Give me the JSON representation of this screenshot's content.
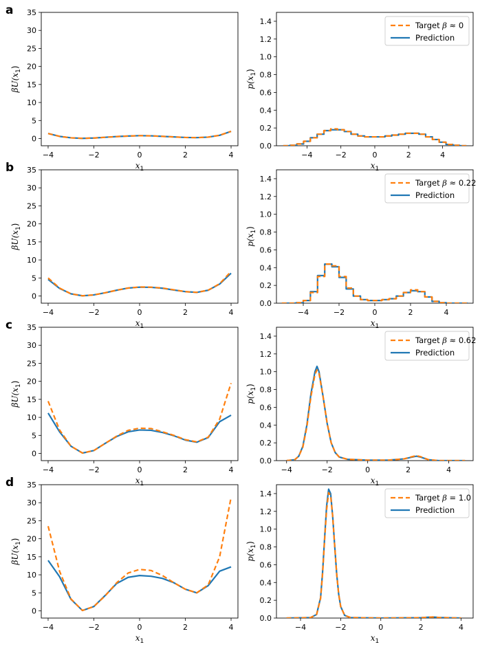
{
  "colors": {
    "target": "#ff7f0e",
    "prediction": "#1f77b4"
  },
  "chart_data": [
    {
      "id": "a-energy",
      "panel_label": "a",
      "type": "line",
      "xlabel_main": "x",
      "xlabel_sub": "1",
      "ylabel": "βU(x",
      "xlim": [
        -4.3,
        4.3
      ],
      "ylim": [
        -2,
        35
      ],
      "xticks": [
        "−4",
        "−2",
        "0",
        "2",
        "4"
      ],
      "xtick_values": [
        -4,
        -2,
        0,
        2,
        4
      ],
      "yticks": [
        "0",
        "5",
        "10",
        "15",
        "20",
        "25",
        "30",
        "35"
      ],
      "ytick_values": [
        0,
        5,
        10,
        15,
        20,
        25,
        30,
        35
      ],
      "x": [
        -4,
        -3.5,
        -3,
        -2.5,
        -2,
        -1.5,
        -1,
        -0.5,
        0,
        0.5,
        1,
        1.5,
        2,
        2.5,
        3,
        3.5,
        4
      ],
      "series": [
        {
          "role": "target",
          "values": [
            1.4,
            0.6,
            0.2,
            0.05,
            0.15,
            0.35,
            0.55,
            0.7,
            0.8,
            0.75,
            0.6,
            0.45,
            0.3,
            0.25,
            0.4,
            0.9,
            2.0
          ]
        },
        {
          "role": "prediction",
          "values": [
            1.4,
            0.6,
            0.2,
            0.05,
            0.15,
            0.35,
            0.55,
            0.7,
            0.8,
            0.75,
            0.6,
            0.45,
            0.3,
            0.25,
            0.4,
            0.9,
            2.0
          ]
        }
      ]
    },
    {
      "id": "a-density",
      "type": "step",
      "xlabel_main": "x",
      "xlabel_sub": "1",
      "ylabel": "p(x",
      "xlim": [
        -5.8,
        5.8
      ],
      "ylim": [
        0,
        1.5
      ],
      "xticks": [
        "−4",
        "−2",
        "0",
        "2",
        "4"
      ],
      "xtick_values": [
        -4,
        -2,
        0,
        2,
        4
      ],
      "yticks": [
        "0.0",
        "0.2",
        "0.4",
        "0.6",
        "0.8",
        "1.0",
        "1.2",
        "1.4"
      ],
      "ytick_values": [
        0,
        0.2,
        0.4,
        0.6,
        0.8,
        1.0,
        1.2,
        1.4
      ],
      "legend": {
        "target_prefix": "Target ",
        "beta_symbol": "β",
        "target_suffix": " ≈ 0",
        "prediction": "Prediction"
      },
      "x": [
        -5.2,
        -4.8,
        -4.4,
        -4.0,
        -3.6,
        -3.2,
        -2.8,
        -2.4,
        -2.0,
        -1.6,
        -1.2,
        -0.8,
        -0.4,
        0.0,
        0.4,
        0.8,
        1.2,
        1.6,
        2.0,
        2.4,
        2.8,
        3.2,
        3.6,
        4.0,
        4.4,
        4.8,
        5.2
      ],
      "series": [
        {
          "role": "target",
          "values": [
            0.0,
            0.005,
            0.02,
            0.05,
            0.09,
            0.13,
            0.17,
            0.19,
            0.18,
            0.16,
            0.13,
            0.11,
            0.1,
            0.1,
            0.1,
            0.11,
            0.12,
            0.13,
            0.14,
            0.14,
            0.13,
            0.1,
            0.07,
            0.04,
            0.015,
            0.005,
            0.0
          ]
        },
        {
          "role": "prediction",
          "values": [
            0.0,
            0.005,
            0.02,
            0.05,
            0.09,
            0.13,
            0.17,
            0.18,
            0.18,
            0.16,
            0.13,
            0.11,
            0.1,
            0.1,
            0.1,
            0.11,
            0.12,
            0.13,
            0.14,
            0.14,
            0.13,
            0.1,
            0.07,
            0.04,
            0.015,
            0.005,
            0.0
          ]
        }
      ]
    },
    {
      "id": "b-energy",
      "panel_label": "b",
      "type": "line",
      "xlabel_main": "x",
      "xlabel_sub": "1",
      "ylabel": "βU(x",
      "xlim": [
        -4.3,
        4.3
      ],
      "ylim": [
        -2,
        35
      ],
      "xticks": [
        "−4",
        "−2",
        "0",
        "2",
        "4"
      ],
      "xtick_values": [
        -4,
        -2,
        0,
        2,
        4
      ],
      "yticks": [
        "0",
        "5",
        "10",
        "15",
        "20",
        "25",
        "30",
        "35"
      ],
      "ytick_values": [
        0,
        5,
        10,
        15,
        20,
        25,
        30,
        35
      ],
      "x": [
        -4,
        -3.5,
        -3,
        -2.5,
        -2,
        -1.5,
        -1,
        -0.5,
        0,
        0.5,
        1,
        1.5,
        2,
        2.5,
        3,
        3.5,
        4
      ],
      "series": [
        {
          "role": "target",
          "values": [
            5.0,
            2.2,
            0.6,
            0.05,
            0.3,
            0.9,
            1.6,
            2.2,
            2.5,
            2.45,
            2.2,
            1.7,
            1.2,
            1.0,
            1.6,
            3.4,
            6.8
          ]
        },
        {
          "role": "prediction",
          "values": [
            4.6,
            2.1,
            0.6,
            0.05,
            0.3,
            0.9,
            1.6,
            2.2,
            2.45,
            2.4,
            2.15,
            1.65,
            1.2,
            1.0,
            1.6,
            3.3,
            6.3
          ]
        }
      ]
    },
    {
      "id": "b-density",
      "type": "step",
      "xlabel_main": "x",
      "xlabel_sub": "1",
      "ylabel": "p(x",
      "xlim": [
        -5.5,
        5.5
      ],
      "ylim": [
        0,
        1.5
      ],
      "xticks": [
        "−4",
        "−2",
        "0",
        "2",
        "4"
      ],
      "xtick_values": [
        -4,
        -2,
        0,
        2,
        4
      ],
      "yticks": [
        "0.0",
        "0.2",
        "0.4",
        "0.6",
        "0.8",
        "1.0",
        "1.2",
        "1.4"
      ],
      "ytick_values": [
        0,
        0.2,
        0.4,
        0.6,
        0.8,
        1.0,
        1.2,
        1.4
      ],
      "legend": {
        "target_prefix": "Target ",
        "beta_symbol": "β",
        "target_suffix": " ≈ 0.22",
        "prediction": "Prediction"
      },
      "x": [
        -5.0,
        -4.6,
        -4.2,
        -3.8,
        -3.4,
        -3.0,
        -2.6,
        -2.2,
        -1.8,
        -1.4,
        -1.0,
        -0.6,
        -0.2,
        0.2,
        0.6,
        1.0,
        1.4,
        1.8,
        2.2,
        2.6,
        3.0,
        3.4,
        3.8,
        4.2,
        4.6,
        5.0
      ],
      "series": [
        {
          "role": "target",
          "values": [
            0.0,
            0.0,
            0.005,
            0.03,
            0.12,
            0.3,
            0.44,
            0.42,
            0.3,
            0.17,
            0.08,
            0.04,
            0.03,
            0.03,
            0.04,
            0.05,
            0.08,
            0.12,
            0.15,
            0.13,
            0.07,
            0.02,
            0.005,
            0.0,
            0.0,
            0.0
          ]
        },
        {
          "role": "prediction",
          "values": [
            0.0,
            0.0,
            0.005,
            0.03,
            0.13,
            0.31,
            0.44,
            0.41,
            0.29,
            0.16,
            0.08,
            0.04,
            0.03,
            0.03,
            0.04,
            0.05,
            0.08,
            0.12,
            0.14,
            0.13,
            0.07,
            0.02,
            0.005,
            0.0,
            0.0,
            0.0
          ]
        }
      ]
    },
    {
      "id": "c-energy",
      "panel_label": "c",
      "type": "line",
      "xlabel_main": "x",
      "xlabel_sub": "1",
      "ylabel": "βU(x",
      "xlim": [
        -4.3,
        4.3
      ],
      "ylim": [
        -2,
        35
      ],
      "xticks": [
        "−4",
        "−2",
        "0",
        "2",
        "4"
      ],
      "xtick_values": [
        -4,
        -2,
        0,
        2,
        4
      ],
      "yticks": [
        "0",
        "5",
        "10",
        "15",
        "20",
        "25",
        "30",
        "35"
      ],
      "ytick_values": [
        0,
        5,
        10,
        15,
        20,
        25,
        30,
        35
      ],
      "x": [
        -4,
        -3.5,
        -3,
        -2.5,
        -2,
        -1.5,
        -1,
        -0.5,
        0,
        0.5,
        1,
        1.5,
        2,
        2.5,
        3,
        3.5,
        4
      ],
      "series": [
        {
          "role": "target",
          "values": [
            14.5,
            6.5,
            2.0,
            0.1,
            0.8,
            2.8,
            4.8,
            6.4,
            7.0,
            6.9,
            6.0,
            5.0,
            3.8,
            3.2,
            4.5,
            9.5,
            19.5
          ]
        },
        {
          "role": "prediction",
          "values": [
            11.2,
            6.0,
            2.0,
            0.1,
            0.8,
            2.8,
            4.7,
            6.0,
            6.5,
            6.4,
            5.8,
            4.9,
            3.7,
            3.1,
            4.4,
            8.8,
            10.6
          ]
        }
      ]
    },
    {
      "id": "c-density",
      "type": "line",
      "xlabel_main": "x",
      "xlabel_sub": "1",
      "ylabel": "p(x",
      "xlim": [
        -4.5,
        5.2
      ],
      "ylim": [
        0,
        1.5
      ],
      "xticks": [
        "−4",
        "−2",
        "0",
        "2",
        "4"
      ],
      "xtick_values": [
        -4,
        -2,
        0,
        2,
        4
      ],
      "yticks": [
        "0.0",
        "0.2",
        "0.4",
        "0.6",
        "0.8",
        "1.0",
        "1.2",
        "1.4"
      ],
      "ytick_values": [
        0,
        0.2,
        0.4,
        0.6,
        0.8,
        1.0,
        1.2,
        1.4
      ],
      "legend": {
        "target_prefix": "Target ",
        "beta_symbol": "β",
        "target_suffix": " ≈ 0.62",
        "prediction": "Prediction"
      },
      "x": [
        -4.0,
        -3.6,
        -3.4,
        -3.2,
        -3.0,
        -2.8,
        -2.6,
        -2.5,
        -2.4,
        -2.2,
        -2.0,
        -1.8,
        -1.6,
        -1.4,
        -1.0,
        0.0,
        1.0,
        1.8,
        2.2,
        2.4,
        2.6,
        3.0,
        3.5,
        4.8
      ],
      "series": [
        {
          "role": "target",
          "values": [
            0.0,
            0.01,
            0.05,
            0.15,
            0.38,
            0.72,
            0.97,
            1.02,
            0.98,
            0.72,
            0.42,
            0.2,
            0.09,
            0.04,
            0.015,
            0.005,
            0.005,
            0.02,
            0.045,
            0.055,
            0.045,
            0.01,
            0.0,
            0.0
          ]
        },
        {
          "role": "prediction",
          "values": [
            0.0,
            0.01,
            0.05,
            0.16,
            0.4,
            0.75,
            1.0,
            1.06,
            1.0,
            0.72,
            0.42,
            0.2,
            0.09,
            0.04,
            0.015,
            0.005,
            0.005,
            0.02,
            0.04,
            0.05,
            0.04,
            0.01,
            0.0,
            0.0
          ]
        }
      ]
    },
    {
      "id": "d-energy",
      "panel_label": "d",
      "type": "line",
      "xlabel_main": "x",
      "xlabel_sub": "1",
      "ylabel": "βU(x",
      "xlim": [
        -4.3,
        4.3
      ],
      "ylim": [
        -2,
        35
      ],
      "xticks": [
        "−4",
        "−2",
        "0",
        "2",
        "4"
      ],
      "xtick_values": [
        -4,
        -2,
        0,
        2,
        4
      ],
      "yticks": [
        "0",
        "5",
        "10",
        "15",
        "20",
        "25",
        "30",
        "35"
      ],
      "ytick_values": [
        0,
        5,
        10,
        15,
        20,
        25,
        30,
        35
      ],
      "x": [
        -4,
        -3.5,
        -3,
        -2.5,
        -2,
        -1.5,
        -1,
        -0.5,
        0,
        0.5,
        1,
        1.5,
        2,
        2.5,
        3,
        3.5,
        4
      ],
      "series": [
        {
          "role": "target",
          "values": [
            23.5,
            11.0,
            3.3,
            0.1,
            1.2,
            4.2,
            7.8,
            10.5,
            11.5,
            11.2,
            9.8,
            7.8,
            6.0,
            5.0,
            7.2,
            15.0,
            31.5
          ]
        },
        {
          "role": "prediction",
          "values": [
            14.0,
            9.5,
            3.2,
            0.1,
            1.2,
            4.3,
            7.6,
            9.3,
            9.8,
            9.6,
            9.0,
            7.8,
            6.0,
            5.0,
            7.0,
            11.0,
            12.2
          ]
        }
      ]
    },
    {
      "id": "d-density",
      "type": "line",
      "xlabel_main": "x",
      "xlabel_sub": "1",
      "ylabel": "p(x",
      "xlim": [
        -5.2,
        4.6
      ],
      "ylim": [
        0,
        1.5
      ],
      "xticks": [
        "−4",
        "−2",
        "0",
        "2",
        "4"
      ],
      "xtick_values": [
        -4,
        -2,
        0,
        2,
        4
      ],
      "yticks": [
        "0.0",
        "0.2",
        "0.4",
        "0.6",
        "0.8",
        "1.0",
        "1.2",
        "1.4"
      ],
      "ytick_values": [
        0,
        0.2,
        0.4,
        0.6,
        0.8,
        1.0,
        1.2,
        1.4
      ],
      "legend": {
        "target_prefix": "Target ",
        "beta_symbol": "β",
        "target_suffix": " = 1.0",
        "prediction": "Prediction"
      },
      "x": [
        -4.7,
        -3.5,
        -3.2,
        -3.0,
        -2.9,
        -2.8,
        -2.7,
        -2.6,
        -2.5,
        -2.4,
        -2.3,
        -2.2,
        -2.1,
        -2.0,
        -1.8,
        -1.5,
        0.0,
        2.0,
        2.4,
        2.6,
        2.9,
        4.0
      ],
      "series": [
        {
          "role": "target",
          "values": [
            0.0,
            0.005,
            0.04,
            0.22,
            0.5,
            0.88,
            1.22,
            1.41,
            1.38,
            1.15,
            0.82,
            0.5,
            0.27,
            0.13,
            0.03,
            0.005,
            0.0,
            0.004,
            0.01,
            0.012,
            0.006,
            0.0
          ]
        },
        {
          "role": "prediction",
          "values": [
            0.0,
            0.005,
            0.04,
            0.23,
            0.52,
            0.9,
            1.26,
            1.45,
            1.4,
            1.15,
            0.82,
            0.5,
            0.27,
            0.13,
            0.03,
            0.005,
            0.0,
            0.004,
            0.01,
            0.012,
            0.006,
            0.0
          ]
        }
      ]
    }
  ]
}
